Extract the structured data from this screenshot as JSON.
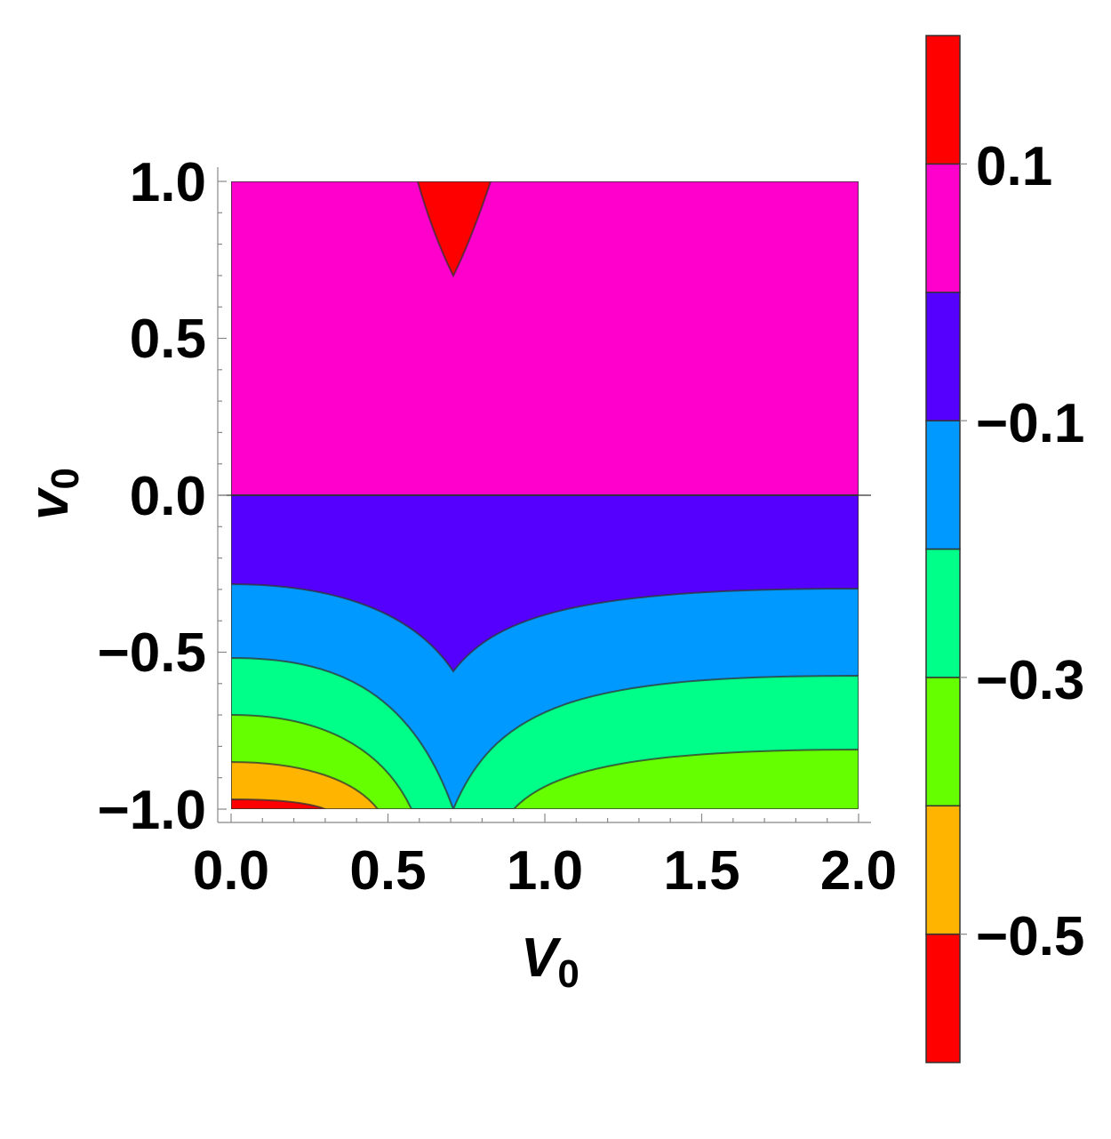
{
  "chart_data": {
    "type": "contour",
    "xlabel": "V",
    "xlabel_subscript": "0",
    "ylabel": "v",
    "ylabel_subscript": "0",
    "xlim": [
      0,
      2
    ],
    "ylim": [
      -1,
      1
    ],
    "x_ticks": [
      0.0,
      0.5,
      1.0,
      1.5,
      2.0
    ],
    "x_tick_labels": [
      "0.0",
      "0.5",
      "1.0",
      "1.5",
      "2.0"
    ],
    "y_ticks": [
      -1.0,
      -0.5,
      0.0,
      0.5,
      1.0
    ],
    "y_tick_labels": [
      "−1.0",
      "−0.5",
      "0.0",
      "0.5",
      "1.0"
    ],
    "colorbar": {
      "levels": [
        -0.6,
        -0.5,
        -0.4,
        -0.3,
        -0.2,
        -0.1,
        0.0,
        0.1,
        0.2
      ],
      "bands": [
        {
          "range": [
            -0.6,
            -0.5
          ],
          "color": "#FF0000"
        },
        {
          "range": [
            -0.5,
            -0.4
          ],
          "color": "#FFB400"
        },
        {
          "range": [
            -0.4,
            -0.3
          ],
          "color": "#66FF00"
        },
        {
          "range": [
            -0.3,
            -0.2
          ],
          "color": "#00FF88"
        },
        {
          "range": [
            -0.2,
            -0.1
          ],
          "color": "#0099FF"
        },
        {
          "range": [
            -0.1,
            0.0
          ],
          "color": "#5500FF"
        },
        {
          "range": [
            0.0,
            0.1
          ],
          "color": "#FF00CC"
        },
        {
          "range": [
            0.1,
            0.2
          ],
          "color": "#FF0000"
        }
      ],
      "tick_values": [
        0.1,
        -0.1,
        -0.3,
        -0.5
      ],
      "tick_labels": [
        "0.1",
        "−0.1",
        "−0.3",
        "−0.5"
      ]
    },
    "notable_features": {
      "cusp_x": 0.7071,
      "top_red_region": {
        "x_range": [
          0.6,
          0.83
        ],
        "y_range": [
          0.7,
          1.0
        ]
      }
    }
  }
}
